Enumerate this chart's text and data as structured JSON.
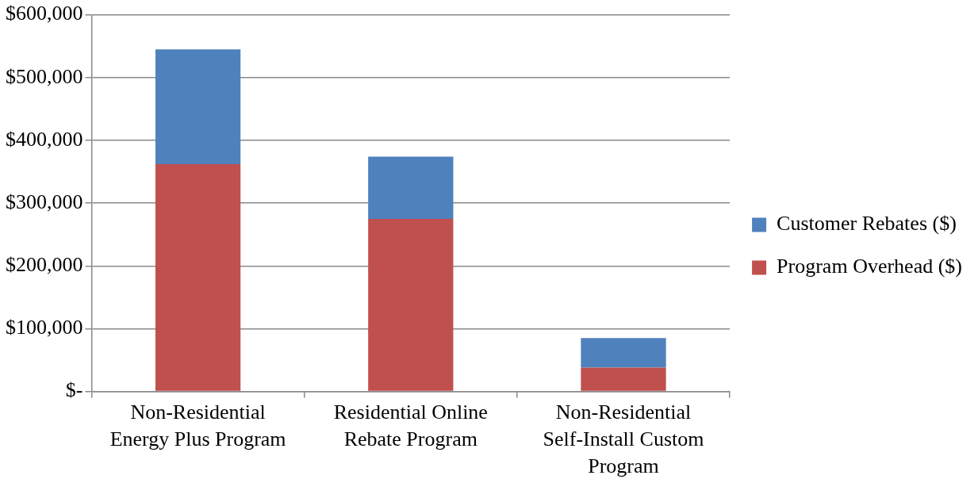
{
  "chart_data": {
    "type": "bar",
    "stacked": true,
    "categories": [
      "Non-Residential Energy Plus Program",
      "Residential Online Rebate Program",
      "Non-Residential Self-Install Custom Program"
    ],
    "series": [
      {
        "name": "Program Overhead ($)",
        "color": "#c0504d",
        "values": [
          362000,
          275000,
          38000
        ]
      },
      {
        "name": "Customer Rebates ($)",
        "color": "#4f81bd",
        "values": [
          183000,
          99000,
          47000
        ]
      }
    ],
    "ylim": [
      0,
      600000
    ],
    "yticks": [
      {
        "value": 0,
        "label": "$-"
      },
      {
        "value": 100000,
        "label": "$100,000"
      },
      {
        "value": 200000,
        "label": "$200,000"
      },
      {
        "value": 300000,
        "label": "$300,000"
      },
      {
        "value": 400000,
        "label": "$400,000"
      },
      {
        "value": 500000,
        "label": "$500,000"
      },
      {
        "value": 600000,
        "label": "$600,000"
      }
    ],
    "grid": "y",
    "legend": "right"
  }
}
